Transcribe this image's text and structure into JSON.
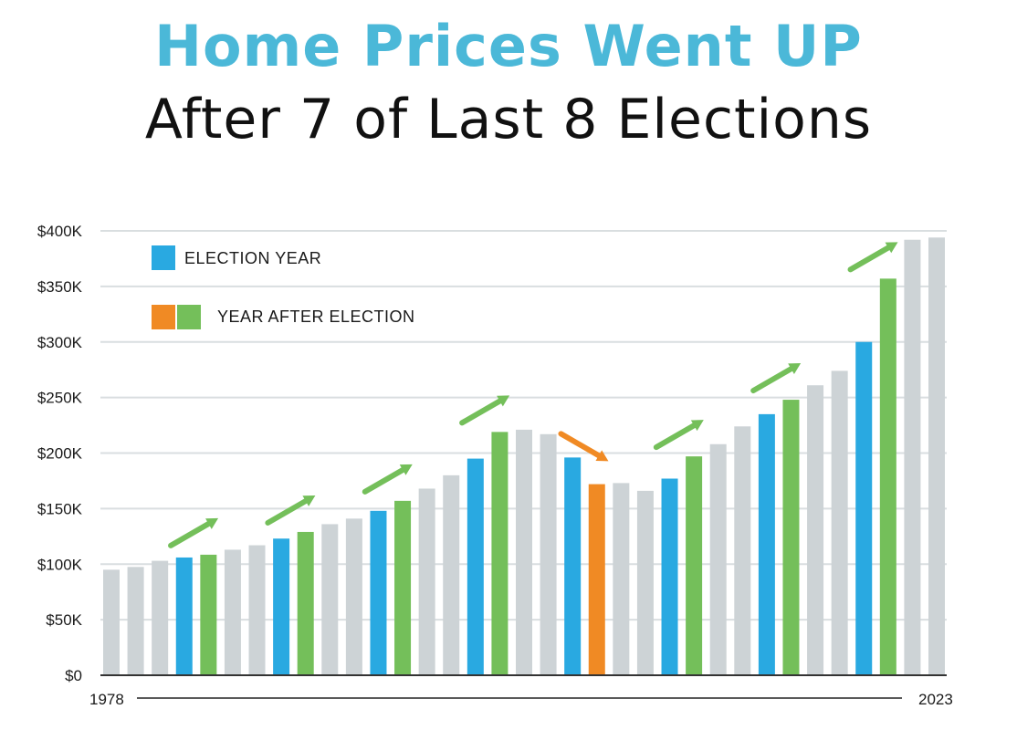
{
  "title": {
    "line1": "Home Prices Went UP",
    "line2": "After 7 of Last 8 Elections"
  },
  "colors": {
    "title_accent": "#4bb8d8",
    "election_year": "#29a9e1",
    "year_after_up": "#74bf5a",
    "year_after_down": "#f08a24",
    "other_year": "#cdd3d6",
    "gridline": "#d9dee0"
  },
  "chart_data": {
    "type": "bar",
    "ylim": [
      0,
      400000
    ],
    "y_ticks": [
      {
        "value": 0,
        "label": "$0"
      },
      {
        "value": 50000,
        "label": "$50K"
      },
      {
        "value": 100000,
        "label": "$100K"
      },
      {
        "value": 150000,
        "label": "$150K"
      },
      {
        "value": 200000,
        "label": "$200K"
      },
      {
        "value": 250000,
        "label": "$250K"
      },
      {
        "value": 300000,
        "label": "$300K"
      },
      {
        "value": 350000,
        "label": "$350K"
      },
      {
        "value": 400000,
        "label": "$400K"
      }
    ],
    "x_start_label": "1978",
    "x_end_label": "2023",
    "legend": [
      {
        "label": "ELECTION YEAR",
        "colors": [
          "#29a9e1"
        ]
      },
      {
        "label": "YEAR AFTER ELECTION",
        "colors": [
          "#f08a24",
          "#74bf5a"
        ]
      }
    ],
    "bars": [
      {
        "value": 95000,
        "kind": "other"
      },
      {
        "value": 97500,
        "kind": "other"
      },
      {
        "value": 103000,
        "kind": "other"
      },
      {
        "value": 106000,
        "kind": "election"
      },
      {
        "value": 108500,
        "kind": "after_up"
      },
      {
        "value": 113000,
        "kind": "other"
      },
      {
        "value": 117000,
        "kind": "other"
      },
      {
        "value": 123000,
        "kind": "election"
      },
      {
        "value": 129000,
        "kind": "after_up"
      },
      {
        "value": 136000,
        "kind": "other"
      },
      {
        "value": 141000,
        "kind": "other"
      },
      {
        "value": 148000,
        "kind": "election"
      },
      {
        "value": 157000,
        "kind": "after_up"
      },
      {
        "value": 168000,
        "kind": "other"
      },
      {
        "value": 180000,
        "kind": "other"
      },
      {
        "value": 195000,
        "kind": "election"
      },
      {
        "value": 219000,
        "kind": "after_up"
      },
      {
        "value": 221000,
        "kind": "other"
      },
      {
        "value": 217000,
        "kind": "other"
      },
      {
        "value": 196000,
        "kind": "election"
      },
      {
        "value": 172000,
        "kind": "after_down"
      },
      {
        "value": 173000,
        "kind": "other"
      },
      {
        "value": 166000,
        "kind": "other"
      },
      {
        "value": 177000,
        "kind": "election"
      },
      {
        "value": 197000,
        "kind": "after_up"
      },
      {
        "value": 208000,
        "kind": "other"
      },
      {
        "value": 224000,
        "kind": "other"
      },
      {
        "value": 235000,
        "kind": "election"
      },
      {
        "value": 248000,
        "kind": "after_up"
      },
      {
        "value": 261000,
        "kind": "other"
      },
      {
        "value": 274000,
        "kind": "other"
      },
      {
        "value": 300000,
        "kind": "election"
      },
      {
        "value": 357000,
        "kind": "after_up"
      },
      {
        "value": 392000,
        "kind": "other"
      },
      {
        "value": 394000,
        "kind": "other"
      }
    ],
    "arrows": [
      {
        "after_bar": 4,
        "direction": "up"
      },
      {
        "after_bar": 8,
        "direction": "up"
      },
      {
        "after_bar": 12,
        "direction": "up"
      },
      {
        "after_bar": 16,
        "direction": "up"
      },
      {
        "after_bar": 20,
        "direction": "down"
      },
      {
        "after_bar": 24,
        "direction": "up"
      },
      {
        "after_bar": 28,
        "direction": "up"
      },
      {
        "after_bar": 32,
        "direction": "up"
      }
    ]
  }
}
